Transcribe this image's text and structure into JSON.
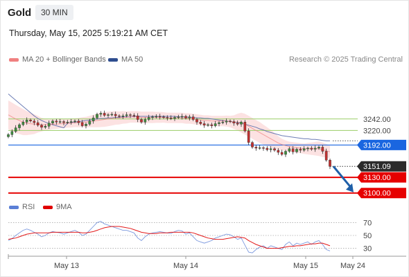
{
  "header": {
    "title": "Gold",
    "interval": "30 MIN"
  },
  "timestamp": "Thursday, May 15, 2025 5:19:21 AM CET",
  "legend": {
    "ma_bb": {
      "label": "MA 20 + Bollinger Bands",
      "color": "#f08080"
    },
    "ma50": {
      "label": "MA 50",
      "color": "#2e4d8f"
    }
  },
  "copyright": "Research © 2025 Trading Central",
  "rsi_legend": {
    "rsi": {
      "label": "RSI",
      "color": "#5b7fd6"
    },
    "ma9": {
      "label": "9MA",
      "color": "#e00000"
    }
  },
  "chart_data": [
    {
      "type": "candlestick",
      "title": "Gold",
      "timeframe": "30 MIN",
      "x_ticks": [
        "May 13",
        "May 14",
        "May 15",
        "May 24"
      ],
      "ylim": [
        3085,
        3340
      ],
      "grid": false,
      "legend_position": "top-left",
      "price_levels": [
        {
          "label": "3242.00",
          "value": 3242.0,
          "kind": "resistance",
          "color": "#9acd66"
        },
        {
          "label": "3220.00",
          "value": 3220.0,
          "kind": "resistance",
          "color": "#9acd66"
        },
        {
          "label": "3192.00",
          "value": 3192.0,
          "kind": "pivot",
          "color": "#1a66e0"
        },
        {
          "label": "3151.09",
          "value": 3151.09,
          "kind": "last",
          "color": "#2b2b2b"
        },
        {
          "label": "3130.00",
          "value": 3130.0,
          "kind": "support",
          "color": "#e60000"
        },
        {
          "label": "3100.00",
          "value": 3100.0,
          "kind": "support",
          "color": "#e60000"
        }
      ],
      "forecast_arrow": {
        "from": 3151.09,
        "to": 3100.0,
        "direction": "down",
        "color": "#1f5fa8"
      },
      "close": [
        3212,
        3218,
        3225,
        3231,
        3236,
        3240,
        3238,
        3235,
        3230,
        3226,
        3228,
        3234,
        3238,
        3236,
        3237,
        3235,
        3236,
        3237,
        3238,
        3235,
        3229,
        3232,
        3238,
        3244,
        3251,
        3253,
        3249,
        3250,
        3251,
        3248,
        3247,
        3248,
        3250,
        3249,
        3248,
        3241,
        3236,
        3241,
        3245,
        3246,
        3247,
        3246,
        3245,
        3244,
        3243,
        3245,
        3246,
        3247,
        3244,
        3246,
        3241,
        3236,
        3233,
        3230,
        3231,
        3229,
        3233,
        3235,
        3236,
        3238,
        3237,
        3234,
        3232,
        3236,
        3219,
        3197,
        3188,
        3186,
        3187,
        3186,
        3183,
        3185,
        3182,
        3178,
        3174,
        3180,
        3185,
        3179,
        3184,
        3182,
        3185,
        3186,
        3184,
        3186,
        3188,
        3180,
        3163,
        3151
      ],
      "ma50": [
        3290,
        3284,
        3278,
        3272,
        3266,
        3260,
        3254,
        3248,
        3243,
        3239,
        3236,
        3233,
        3231,
        3229,
        3227,
        3225,
        3234,
        3235,
        3236,
        3237,
        3238,
        3239,
        3240,
        3241,
        3242,
        3243,
        3243,
        3244,
        3244,
        3245,
        3245,
        3246,
        3246,
        3246,
        3247,
        3247,
        3247,
        3247,
        3247,
        3247,
        3247,
        3247,
        3247,
        3247,
        3247,
        3247,
        3246,
        3246,
        3246,
        3245,
        3245,
        3244,
        3244,
        3243,
        3243,
        3242,
        3241,
        3240,
        3239,
        3238,
        3237,
        3236,
        3235,
        3234,
        3232,
        3230,
        3228,
        3226,
        3223,
        3221,
        3218,
        3216,
        3214,
        3212,
        3210,
        3209,
        3208,
        3207,
        3206,
        3205,
        3204,
        3204,
        3203,
        3203,
        3202,
        3201,
        3200,
        3200
      ],
      "ma20": [
        3250,
        3246,
        3242,
        3239,
        3236,
        3234,
        3233,
        3232,
        3232,
        3231,
        3231,
        3231,
        3232,
        3232,
        3233,
        3233,
        3234,
        3234,
        3235,
        3235,
        3236,
        3236,
        3237,
        3238,
        3239,
        3240,
        3241,
        3242,
        3243,
        3244,
        3244,
        3245,
        3245,
        3246,
        3246,
        3246,
        3245,
        3245,
        3245,
        3245,
        3245,
        3245,
        3245,
        3244,
        3244,
        3244,
        3244,
        3244,
        3243,
        3243,
        3242,
        3241,
        3240,
        3239,
        3239,
        3238,
        3238,
        3238,
        3238,
        3238,
        3237,
        3236,
        3236,
        3235,
        3232,
        3228,
        3224,
        3220,
        3216,
        3212,
        3208,
        3204,
        3200,
        3196,
        3193,
        3191,
        3189,
        3188,
        3187,
        3186,
        3185,
        3185,
        3185,
        3185,
        3185,
        3183,
        3181,
        3179
      ],
      "bb_width": [
        55,
        55,
        54,
        52,
        50,
        46,
        42,
        38,
        32,
        26,
        22,
        20,
        19,
        18,
        18,
        17,
        17,
        17,
        17,
        18,
        19,
        20,
        22,
        24,
        26,
        27,
        28,
        28,
        27,
        26,
        25,
        24,
        23,
        22,
        22,
        22,
        22,
        22,
        22,
        22,
        21,
        21,
        20,
        20,
        20,
        20,
        20,
        20,
        20,
        20,
        20,
        20,
        20,
        20,
        20,
        20,
        20,
        20,
        20,
        21,
        22,
        26,
        32,
        38,
        40,
        40,
        40,
        40,
        40,
        38,
        36,
        34,
        30,
        26,
        22,
        20,
        19,
        19,
        19,
        19,
        20,
        22,
        24,
        26,
        28,
        28,
        26,
        24
      ]
    },
    {
      "type": "line",
      "title": "RSI",
      "ylim": [
        22,
        78
      ],
      "y_ticks": [
        70,
        50,
        30
      ],
      "x_ticks": [
        "May 13",
        "May 14",
        "May 15",
        "May 24"
      ],
      "series": [
        {
          "name": "RSI",
          "color": "#5b7fd6",
          "values": [
            42,
            45,
            50,
            54,
            58,
            60,
            58,
            55,
            52,
            48,
            50,
            54,
            56,
            55,
            54,
            52,
            54,
            56,
            58,
            55,
            50,
            52,
            58,
            64,
            70,
            72,
            68,
            66,
            64,
            62,
            60,
            58,
            58,
            56,
            54,
            46,
            42,
            48,
            52,
            54,
            55,
            56,
            55,
            54,
            53,
            56,
            58,
            57,
            52,
            54,
            48,
            42,
            40,
            38,
            40,
            42,
            46,
            48,
            50,
            52,
            51,
            48,
            44,
            46,
            35,
            24,
            23,
            28,
            32,
            34,
            30,
            34,
            32,
            30,
            28,
            36,
            40,
            34,
            38,
            36,
            38,
            40,
            36,
            40,
            42,
            36,
            28,
            26
          ]
        },
        {
          "name": "9MA",
          "color": "#e00000",
          "values": [
            44,
            45,
            46,
            48,
            50,
            52,
            53,
            54,
            54,
            54,
            54,
            54,
            55,
            55,
            55,
            55,
            55,
            55,
            55,
            55,
            54,
            54,
            55,
            56,
            58,
            60,
            62,
            63,
            64,
            64,
            64,
            63,
            62,
            61,
            59,
            57,
            55,
            54,
            53,
            53,
            53,
            54,
            54,
            54,
            55,
            55,
            55,
            55,
            55,
            55,
            54,
            52,
            50,
            48,
            46,
            45,
            44,
            44,
            44,
            45,
            46,
            47,
            48,
            47,
            46,
            42,
            39,
            36,
            34,
            32,
            30,
            30,
            30,
            30,
            31,
            32,
            33,
            33,
            34,
            34,
            35,
            36,
            37,
            37,
            38,
            38,
            36,
            34
          ]
        }
      ]
    }
  ]
}
